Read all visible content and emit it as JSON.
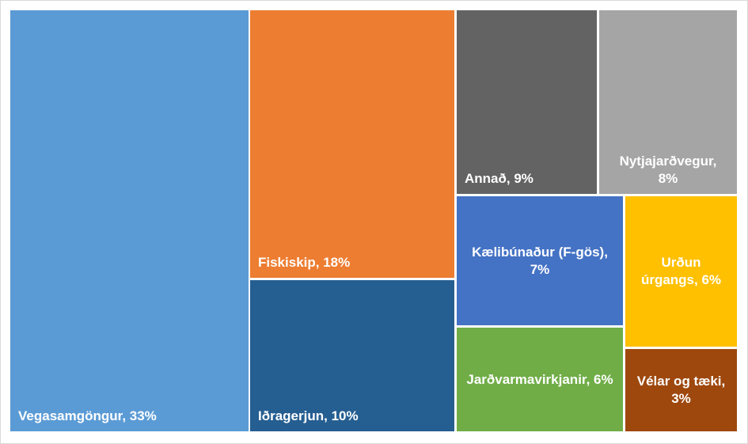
{
  "chart_data": {
    "type": "treemap",
    "values": [
      33,
      18,
      10,
      9,
      8,
      7,
      6,
      6,
      3
    ],
    "value_labels": [
      "Vegasamgöngur, 33%",
      "Fiskiskip, 18%",
      "Iðragerjun, 10%",
      "Annað, 9%",
      "Nytjajarðvegur, 8%",
      "Kælibúnaður (F-gös), 7%",
      "Urðun úrgangs, 6%",
      "Jarðvarmavirkjanir, 6%",
      "Vélar og tæki, 3%"
    ],
    "colors": [
      "#5b9bd5",
      "#ed7d31",
      "#255e91",
      "#636363",
      "#a5a5a5",
      "#4472c4",
      "#ffc000",
      "#70ad47",
      "#9e480e"
    ]
  }
}
